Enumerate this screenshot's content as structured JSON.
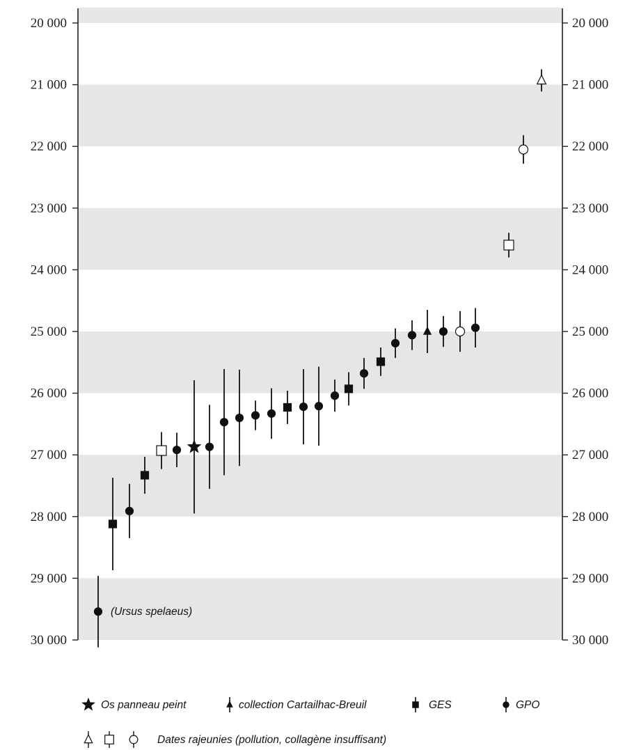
{
  "chart_data": {
    "type": "scatter",
    "title": "",
    "xlabel": "",
    "ylabel": "",
    "y_inverted": true,
    "ylim": [
      20000,
      30000
    ],
    "y_ticks": [
      20000,
      21000,
      22000,
      23000,
      24000,
      25000,
      26000,
      27000,
      28000,
      29000,
      30000
    ],
    "y_tick_labels": [
      "20 000",
      "21 000",
      "22 000",
      "23 000",
      "24 000",
      "25 000",
      "26 000",
      "27 000",
      "28 000",
      "29 000",
      "30 000"
    ],
    "band_color": "#e6e6e6",
    "grid": false,
    "legend_position": "bottom",
    "series": [
      {
        "name": "Os panneau peint",
        "marker": "star",
        "filled": true,
        "points": [
          {
            "age": 26870,
            "err": 1080
          }
        ]
      },
      {
        "name": "collection Cartailhac-Breuil",
        "marker": "triangle",
        "filled": true,
        "points": [
          {
            "age": 25000,
            "err": 350
          }
        ]
      },
      {
        "name": "GES",
        "marker": "square",
        "filled": true,
        "points": [
          {
            "age": 28120,
            "err": 750
          },
          {
            "age": 27330,
            "err": 300
          },
          {
            "age": 26230,
            "err": 270
          },
          {
            "age": 25930,
            "err": 270
          },
          {
            "age": 25490,
            "err": 230
          }
        ]
      },
      {
        "name": "GPO",
        "marker": "circle",
        "filled": true,
        "points": [
          {
            "age": 29540,
            "err": 580
          },
          {
            "age": 27910,
            "err": 440
          },
          {
            "age": 26920,
            "err": 280
          },
          {
            "age": 26870,
            "err": 680
          },
          {
            "age": 26470,
            "err": 860
          },
          {
            "age": 26400,
            "err": 780
          },
          {
            "age": 26360,
            "err": 240
          },
          {
            "age": 26330,
            "err": 410
          },
          {
            "age": 26220,
            "err": 610
          },
          {
            "age": 26210,
            "err": 640
          },
          {
            "age": 26040,
            "err": 260
          },
          {
            "age": 25680,
            "err": 250
          },
          {
            "age": 25190,
            "err": 240
          },
          {
            "age": 25060,
            "err": 240
          },
          {
            "age": 25000,
            "err": 250
          },
          {
            "age": 24940,
            "err": 320
          }
        ]
      },
      {
        "name": "Dates rajeunies (pollution, collagène insuffisant)",
        "marker": "open",
        "filled": false,
        "points": [
          {
            "age": 26930,
            "err": 300,
            "shape": "square"
          },
          {
            "age": 25000,
            "err": 330,
            "shape": "circle"
          },
          {
            "age": 23600,
            "err": 200,
            "shape": "square"
          },
          {
            "age": 22050,
            "err": 230,
            "shape": "circle"
          },
          {
            "age": 20930,
            "err": 180,
            "shape": "triangle"
          }
        ]
      }
    ],
    "annotations": [
      {
        "text": "(Ursus spelaeus)"
      }
    ]
  },
  "legend": {
    "row1": [
      "Os panneau peint",
      "collection Cartailhac-Breuil",
      "GES",
      "GPO"
    ],
    "row2": "Dates rajeunies (pollution, collagène insuffisant)"
  }
}
